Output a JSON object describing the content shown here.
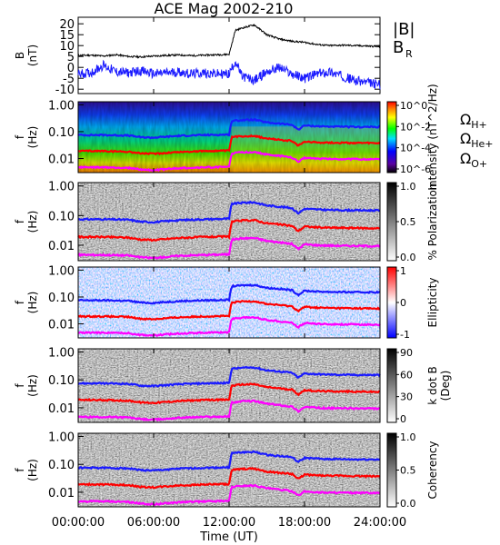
{
  "figure": {
    "title": "ACE Mag 2002-210",
    "time_axis_label": "Time (UT)",
    "time_ticks": [
      "00:00:00",
      "06:00:00",
      "12:00:00",
      "18:00:00",
      "24:00:00"
    ]
  },
  "colors": {
    "bmag": "#000000",
    "br": "#1a1aff",
    "h_plus": "#1a1aff",
    "he_plus": "#ff0000",
    "o_plus": "#ff00ff"
  },
  "chart_data": [
    {
      "type": "line",
      "title": "ACE Mag 2002-210",
      "ylabel_line1": "B",
      "ylabel_line2": "(nT)",
      "ylim": [
        -12,
        23
      ],
      "yticks": [
        "20",
        "15",
        "10",
        "5",
        "0",
        "-5",
        "-10"
      ],
      "x_hours": [
        0,
        1,
        2,
        3,
        4,
        5,
        6,
        7,
        8,
        9,
        10,
        11,
        12,
        12.5,
        13,
        14,
        15,
        16,
        17,
        18,
        19,
        20,
        21,
        22,
        23,
        24
      ],
      "series": [
        {
          "name": "|B|",
          "values": [
            5.5,
            5.6,
            5.2,
            5.8,
            5.0,
            4.8,
            5.2,
            5.5,
            5.7,
            5.4,
            5.6,
            5.8,
            6.0,
            17,
            18,
            19.5,
            15,
            13,
            12,
            11.5,
            10.5,
            10,
            10.2,
            10,
            9.8,
            9.5
          ]
        },
        {
          "name": "B_R",
          "values": [
            -3,
            -2.5,
            1,
            -2,
            -2.5,
            -1.5,
            -3,
            -2.5,
            -2,
            -3,
            -2.5,
            -3,
            -3,
            3,
            -4,
            -6,
            -2,
            0,
            -3,
            -5,
            -3,
            -2,
            -4,
            -6,
            -7,
            -8
          ]
        }
      ],
      "legend": [
        "|B|",
        "B",
        "R"
      ]
    },
    {
      "type": "heatmap",
      "ylabel_line1": "f",
      "ylabel_line2": "(Hz)",
      "colorbar_label": "Intensity (nT^2/Hz)",
      "colorbar_ticks": [
        "10^0",
        "10^-2",
        "10^-4",
        "10^-6"
      ],
      "yticks": [
        "1.00",
        "0.10",
        "0.01"
      ],
      "legend": [
        "ΩH+",
        "ΩHe+",
        "ΩO+"
      ]
    },
    {
      "type": "heatmap",
      "ylabel_line1": "f",
      "ylabel_line2": "(Hz)",
      "colorbar_label": "% Polarization",
      "colorbar_ticks": [
        "1.0",
        "0.5",
        "0.0"
      ],
      "yticks": [
        "1.00",
        "0.10",
        "0.01"
      ]
    },
    {
      "type": "heatmap",
      "ylabel_line1": "f",
      "ylabel_line2": "(Hz)",
      "colorbar_label": "Ellipticity",
      "colorbar_ticks": [
        "1",
        "0",
        "-1"
      ],
      "yticks": [
        "1.00",
        "0.10",
        "0.01"
      ]
    },
    {
      "type": "heatmap",
      "ylabel_line1": "f",
      "ylabel_line2": "(Hz)",
      "colorbar_label": "k dot B (Deg)",
      "colorbar_label_line1": "k dot B",
      "colorbar_label_line2": "(Deg)",
      "colorbar_ticks": [
        "90",
        "60",
        "30",
        "0"
      ],
      "yticks": [
        "1.00",
        "0.10",
        "0.01"
      ]
    },
    {
      "type": "heatmap",
      "ylabel_line1": "f",
      "ylabel_line2": "(Hz)",
      "colorbar_label": "Coherency",
      "colorbar_ticks": [
        "1.0",
        "0.5",
        "0.0"
      ],
      "yticks": [
        "1.00",
        "0.10",
        "0.01"
      ]
    }
  ],
  "gyro_lines": {
    "x_hours": [
      0,
      2,
      4,
      5,
      6,
      8,
      10,
      12,
      12.2,
      13,
      14,
      15,
      16,
      17,
      17.5,
      18,
      19,
      20,
      22,
      24
    ],
    "h_plus_hz": [
      0.075,
      0.075,
      0.072,
      0.062,
      0.06,
      0.07,
      0.075,
      0.078,
      0.25,
      0.27,
      0.28,
      0.22,
      0.2,
      0.18,
      0.12,
      0.17,
      0.16,
      0.155,
      0.15,
      0.15
    ],
    "he_plus_hz": [
      0.019,
      0.019,
      0.018,
      0.0155,
      0.015,
      0.0175,
      0.019,
      0.0195,
      0.062,
      0.068,
      0.07,
      0.055,
      0.05,
      0.045,
      0.03,
      0.043,
      0.04,
      0.039,
      0.038,
      0.037
    ],
    "o_plus_hz": [
      0.0047,
      0.0047,
      0.0045,
      0.0039,
      0.0037,
      0.0044,
      0.0047,
      0.0049,
      0.0155,
      0.017,
      0.0175,
      0.014,
      0.0125,
      0.011,
      0.0075,
      0.0107,
      0.01,
      0.0097,
      0.0095,
      0.0093
    ]
  }
}
